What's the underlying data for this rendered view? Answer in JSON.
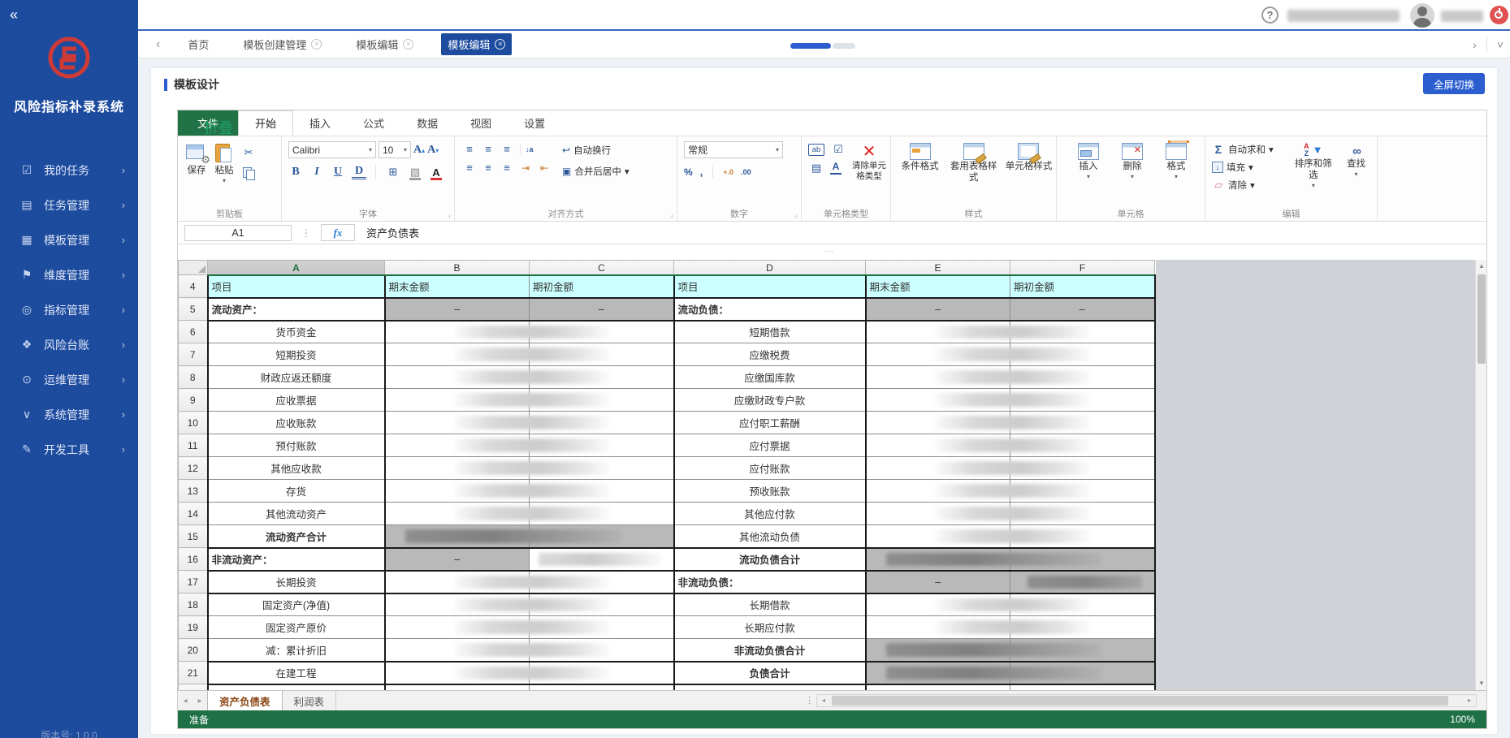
{
  "sidebar": {
    "collapse_icon": "«",
    "system_title": "风险指标补录系统",
    "version": "版本号: 1.0.0",
    "chevron": "›",
    "item_glyphs": [
      "☑",
      "▤",
      "▦",
      "⚑",
      "◎",
      "❖",
      "⊙",
      "∨",
      "✎"
    ],
    "items": [
      {
        "label": "我的任务"
      },
      {
        "label": "任务管理"
      },
      {
        "label": "模板管理"
      },
      {
        "label": "维度管理"
      },
      {
        "label": "指标管理"
      },
      {
        "label": "风险台账"
      },
      {
        "label": "运维管理"
      },
      {
        "label": "系统管理"
      },
      {
        "label": "开发工具"
      }
    ]
  },
  "topbar": {
    "help": "?"
  },
  "tabstrip": {
    "back": "‹",
    "forward": "›",
    "dropdown": "˅",
    "close": "×",
    "tabs": [
      {
        "label": "首页",
        "closable": false,
        "active": false
      },
      {
        "label": "模板创建管理",
        "closable": true,
        "active": false
      },
      {
        "label": "模板编辑",
        "closable": true,
        "active": false
      },
      {
        "label": "模板编辑",
        "closable": true,
        "active": true
      }
    ]
  },
  "panel": {
    "title": "模板设计",
    "fullscreen_button": "全屏切换"
  },
  "icons": {
    "gear": "⚙",
    "scissors": "✂",
    "dropdown": "▾",
    "borders": "⊞",
    "fill": "▨",
    "align": "≡",
    "sort_text": "↓a",
    "indent": "⇥",
    "outdent": "⇤",
    "wrap": "↩",
    "merge": "▣",
    "check": "☑",
    "list": "▤",
    "clear_x": "✕",
    "sum": "Σ",
    "fill_down": "↓",
    "eraser": "▱",
    "funnel": "▼",
    "dots_v": "⋮",
    "handle": "⋯",
    "up": "▲",
    "down": "▼",
    "left": "◂",
    "right": "▸",
    "font_color": "A",
    "font_inc": "A",
    "font_dec": "A",
    "tri_up": "▴",
    "tri_down": "▾",
    "atype": "A",
    "az_a": "A",
    "az_z": "Z",
    "find": "∞",
    "launcher": "⌟",
    "fx": "fx"
  },
  "ribbon": {
    "tabs": [
      {
        "label": "文件"
      },
      {
        "label": "开始"
      },
      {
        "label": "插入"
      },
      {
        "label": "公式"
      },
      {
        "label": "数据"
      },
      {
        "label": "视图"
      },
      {
        "label": "设置"
      },
      {
        "label": "折叠"
      }
    ],
    "groups": {
      "clipboard": {
        "label": "剪贴板",
        "save": "保存",
        "paste": "粘贴"
      },
      "font": {
        "label": "字体",
        "family": "Calibri",
        "size": "10",
        "bold": "B",
        "italic": "I",
        "underline": "U",
        "double_underline": "D"
      },
      "alignment": {
        "label": "对齐方式",
        "wrap": "自动换行",
        "merge": "合并后居中"
      },
      "number": {
        "label": "数字",
        "format": "常规",
        "percent": "%",
        "comma": ",",
        "inc": "+.0",
        "dec": ".00"
      },
      "celltype": {
        "label": "单元格类型",
        "ab": "ab",
        "clear": "清除单元格类型"
      },
      "style": {
        "label": "样式",
        "conditional": "条件格式",
        "table_style": "套用表格样式",
        "cell_style": "单元格样式"
      },
      "cells": {
        "label": "单元格",
        "insert": "插入",
        "delete": "删除",
        "format": "格式"
      },
      "editing": {
        "label": "编辑",
        "autosum": "自动求和",
        "fill": "填充",
        "clear": "清除",
        "sort": "排序和筛选",
        "find": "查找"
      }
    }
  },
  "formula_bar": {
    "cell_ref": "A1",
    "content": "资产负债表"
  },
  "grid": {
    "columns": [
      "A",
      "B",
      "C",
      "D",
      "E",
      "F"
    ],
    "active_column": "A",
    "rows": [
      {
        "n": "4",
        "hb": 1,
        "cells": [
          {
            "t": "项目",
            "c": "h"
          },
          {
            "t": "期末金额",
            "c": "h"
          },
          {
            "t": "期初金额",
            "c": "h"
          },
          {
            "t": "项目",
            "c": "h"
          },
          {
            "t": "期末金额",
            "c": "h"
          },
          {
            "t": "期初金额",
            "c": "h"
          }
        ]
      },
      {
        "n": "5",
        "hb": 1,
        "cells": [
          {
            "t": "流动资产：",
            "c": "bl"
          },
          {
            "t": "–",
            "c": "g c"
          },
          {
            "t": "–",
            "c": "g c"
          },
          {
            "t": "流动负债：",
            "c": "bl"
          },
          {
            "t": "–",
            "c": "g c"
          },
          {
            "t": "–",
            "c": "g c"
          }
        ]
      },
      {
        "n": "6",
        "cells": [
          {
            "t": "货币资金",
            "c": "c"
          },
          {
            "b": "b"
          },
          {},
          {
            "t": "短期借款",
            "c": "c"
          },
          {
            "b": "b"
          },
          {}
        ]
      },
      {
        "n": "7",
        "cells": [
          {
            "t": "短期投资",
            "c": "c"
          },
          {
            "b": "b"
          },
          {},
          {
            "t": "应缴税费",
            "c": "c"
          },
          {
            "b": "b"
          },
          {}
        ]
      },
      {
        "n": "8",
        "cells": [
          {
            "t": "财政应返还额度",
            "c": "c"
          },
          {
            "b": "b"
          },
          {},
          {
            "t": "应缴国库款",
            "c": "c"
          },
          {
            "b": "b"
          },
          {}
        ]
      },
      {
        "n": "9",
        "cells": [
          {
            "t": "应收票据",
            "c": "c"
          },
          {
            "b": "b"
          },
          {},
          {
            "t": "应缴财政专户款",
            "c": "c"
          },
          {
            "b": "b"
          },
          {}
        ]
      },
      {
        "n": "10",
        "cells": [
          {
            "t": "应收账款",
            "c": "c"
          },
          {
            "b": "b"
          },
          {},
          {
            "t": "应付职工薪酬",
            "c": "c"
          },
          {
            "b": "b"
          },
          {}
        ]
      },
      {
        "n": "11",
        "cells": [
          {
            "t": "预付账款",
            "c": "c"
          },
          {
            "b": "b"
          },
          {},
          {
            "t": "应付票据",
            "c": "c"
          },
          {
            "b": "b"
          },
          {}
        ]
      },
      {
        "n": "12",
        "cells": [
          {
            "t": "其他应收款",
            "c": "c"
          },
          {
            "b": "b"
          },
          {},
          {
            "t": "应付账款",
            "c": "c"
          },
          {
            "b": "b"
          },
          {}
        ]
      },
      {
        "n": "13",
        "cells": [
          {
            "t": "存货",
            "c": "c"
          },
          {
            "b": "b"
          },
          {},
          {
            "t": "预收账款",
            "c": "c"
          },
          {
            "b": "b"
          },
          {}
        ]
      },
      {
        "n": "14",
        "cells": [
          {
            "t": "其他流动资产",
            "c": "c"
          },
          {
            "b": "b"
          },
          {},
          {
            "t": "其他应付款",
            "c": "c"
          },
          {
            "b": "b"
          },
          {}
        ]
      },
      {
        "n": "15",
        "hb": 1,
        "cells": [
          {
            "t": "流动资产合计",
            "c": "bc"
          },
          {
            "c": "g",
            "b": "gb"
          },
          {
            "c": "g"
          },
          {
            "t": "其他流动负债",
            "c": "c"
          },
          {
            "b": "b"
          },
          {}
        ]
      },
      {
        "n": "16",
        "hb": 1,
        "cells": [
          {
            "t": "非流动资产：",
            "c": "bl"
          },
          {
            "t": "–",
            "c": "g c"
          },
          {
            "b": "b1"
          },
          {
            "t": "流动负债合计",
            "c": "bc"
          },
          {
            "c": "g",
            "b": "gb"
          },
          {
            "c": "g"
          }
        ]
      },
      {
        "n": "17",
        "hb": 1,
        "cells": [
          {
            "t": "长期投资",
            "c": "c"
          },
          {
            "b": "b"
          },
          {},
          {
            "t": "非流动负债：",
            "c": "bl"
          },
          {
            "t": "–",
            "c": "g c"
          },
          {
            "c": "g",
            "b": "gb1"
          }
        ]
      },
      {
        "n": "18",
        "cells": [
          {
            "t": "固定资产(净值)",
            "c": "c"
          },
          {
            "b": "b"
          },
          {},
          {
            "t": "长期借款",
            "c": "c"
          },
          {
            "b": "b"
          },
          {}
        ]
      },
      {
        "n": "19",
        "cells": [
          {
            "t": "固定资产原价",
            "c": "c"
          },
          {
            "b": "b"
          },
          {},
          {
            "t": "长期应付款",
            "c": "c"
          },
          {
            "b": "b"
          },
          {}
        ]
      },
      {
        "n": "20",
        "hb": 1,
        "cells": [
          {
            "t": "减：累计折旧",
            "c": "c"
          },
          {
            "b": "b"
          },
          {},
          {
            "t": "非流动负债合计",
            "c": "bc"
          },
          {
            "c": "g",
            "b": "gb"
          },
          {
            "c": "g"
          }
        ]
      },
      {
        "n": "21",
        "hb": 1,
        "cells": [
          {
            "t": "在建工程",
            "c": "c"
          },
          {
            "b": "b"
          },
          {},
          {
            "t": "负债合计",
            "c": "bc"
          },
          {
            "c": "g",
            "b": "gb"
          },
          {
            "c": "g"
          }
        ]
      },
      {
        "n": "22",
        "cells": [
          {},
          {},
          {},
          {},
          {},
          {}
        ]
      }
    ]
  },
  "sheetbar": {
    "tabs": [
      {
        "label": "资产负债表",
        "active": true
      },
      {
        "label": "利润表",
        "active": false
      }
    ]
  },
  "statusbar": {
    "ready": "准备",
    "zoom": "100%"
  }
}
